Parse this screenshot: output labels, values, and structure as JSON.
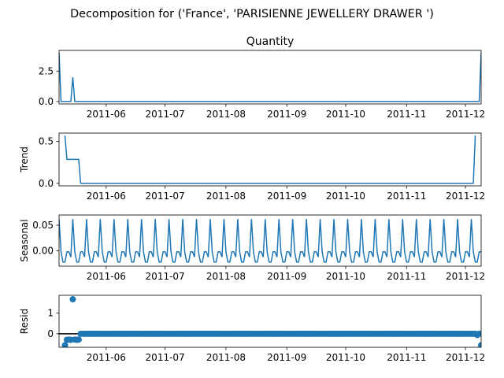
{
  "figure": {
    "suptitle": "Decomposition for ('France', 'PARISIENNE JEWELLERY DRAWER ')",
    "line_color": "#1f77b4",
    "zero_line_color": "#000000"
  },
  "chart_data": [
    {
      "type": "line",
      "title": "Quantity",
      "ylabel": "",
      "x_range": [
        "2011-05-08",
        "2011-12-09"
      ],
      "ylim": [
        -0.2,
        4.2
      ],
      "yticks": [
        0.0,
        2.5
      ],
      "ytick_labels": [
        "0.0",
        "2.5"
      ],
      "xtick_dates": [
        "2011-06-01",
        "2011-07-01",
        "2011-08-01",
        "2011-09-01",
        "2011-10-01",
        "2011-11-01",
        "2011-12-01"
      ],
      "xtick_labels": [
        "2011-06",
        "2011-07",
        "2011-08",
        "2011-09",
        "2011-10",
        "2011-11",
        "2011-12"
      ],
      "series": [
        {
          "kind": "line",
          "points": [
            [
              "2011-05-08",
              4.0
            ],
            [
              "2011-05-09",
              0.0
            ],
            [
              "2011-05-14",
              0.0
            ],
            [
              "2011-05-15",
              2.0
            ],
            [
              "2011-05-16",
              0.0
            ],
            [
              "2011-12-08",
              0.0
            ],
            [
              "2011-12-09",
              4.0
            ]
          ]
        }
      ]
    },
    {
      "type": "line",
      "title": "",
      "ylabel": "Trend",
      "x_range": [
        "2011-05-08",
        "2011-12-09"
      ],
      "ylim": [
        -0.03,
        0.6
      ],
      "yticks": [
        0.0,
        0.5
      ],
      "ytick_labels": [
        "0.0",
        "0.5"
      ],
      "xtick_dates": [
        "2011-06-01",
        "2011-07-01",
        "2011-08-01",
        "2011-09-01",
        "2011-10-01",
        "2011-11-01",
        "2011-12-01"
      ],
      "xtick_labels": [
        "2011-06",
        "2011-07",
        "2011-08",
        "2011-09",
        "2011-10",
        "2011-11",
        "2011-12"
      ],
      "series": [
        {
          "kind": "line",
          "points": [
            [
              "2011-05-11",
              0.57
            ],
            [
              "2011-05-12",
              0.286
            ],
            [
              "2011-05-18",
              0.286
            ],
            [
              "2011-05-19",
              0.0
            ],
            [
              "2011-12-05",
              0.0
            ],
            [
              "2011-12-06",
              0.57
            ]
          ]
        }
      ]
    },
    {
      "type": "line",
      "title": "",
      "ylabel": "Seasonal",
      "x_range": [
        "2011-05-08",
        "2011-12-09"
      ],
      "ylim": [
        -0.03,
        0.07
      ],
      "yticks": [
        0.0,
        0.05
      ],
      "ytick_labels": [
        "0.00",
        "0.05"
      ],
      "xtick_dates": [
        "2011-06-01",
        "2011-07-01",
        "2011-08-01",
        "2011-09-01",
        "2011-10-01",
        "2011-11-01",
        "2011-12-01"
      ],
      "xtick_labels": [
        "2011-06",
        "2011-07",
        "2011-08",
        "2011-09",
        "2011-10",
        "2011-11",
        "2011-12"
      ],
      "series": [
        {
          "kind": "weekly_pattern",
          "start": "2011-05-08",
          "end": "2011-12-09",
          "pattern": [
            0.062,
            -0.002,
            -0.022,
            -0.022,
            -0.002,
            -0.002,
            -0.012
          ]
        }
      ]
    },
    {
      "type": "scatter",
      "title": "",
      "ylabel": "Resid",
      "x_range": [
        "2011-05-08",
        "2011-12-09"
      ],
      "ylim": [
        -0.65,
        1.85
      ],
      "yticks": [
        0,
        1
      ],
      "ytick_labels": [
        "0",
        "1"
      ],
      "zero_line": true,
      "xtick_dates": [
        "2011-06-01",
        "2011-07-01",
        "2011-08-01",
        "2011-09-01",
        "2011-10-01",
        "2011-11-01",
        "2011-12-01"
      ],
      "xtick_labels": [
        "2011-06",
        "2011-07",
        "2011-08",
        "2011-09",
        "2011-10",
        "2011-11",
        "2011-12"
      ],
      "series": [
        {
          "kind": "scatter_range",
          "start": "2011-05-11",
          "end": "2011-12-09",
          "default": 0.0,
          "overrides": [
            [
              "2011-05-11",
              -0.55
            ],
            [
              "2011-05-12",
              -0.29
            ],
            [
              "2011-05-13",
              -0.28
            ],
            [
              "2011-05-14",
              -0.29
            ],
            [
              "2011-05-15",
              1.66
            ],
            [
              "2011-05-16",
              -0.28
            ],
            [
              "2011-05-17",
              -0.29
            ],
            [
              "2011-05-18",
              -0.28
            ],
            [
              "2011-12-07",
              -0.06
            ],
            [
              "2011-12-08",
              0.0
            ],
            [
              "2011-12-09",
              -0.55
            ]
          ]
        }
      ]
    }
  ]
}
